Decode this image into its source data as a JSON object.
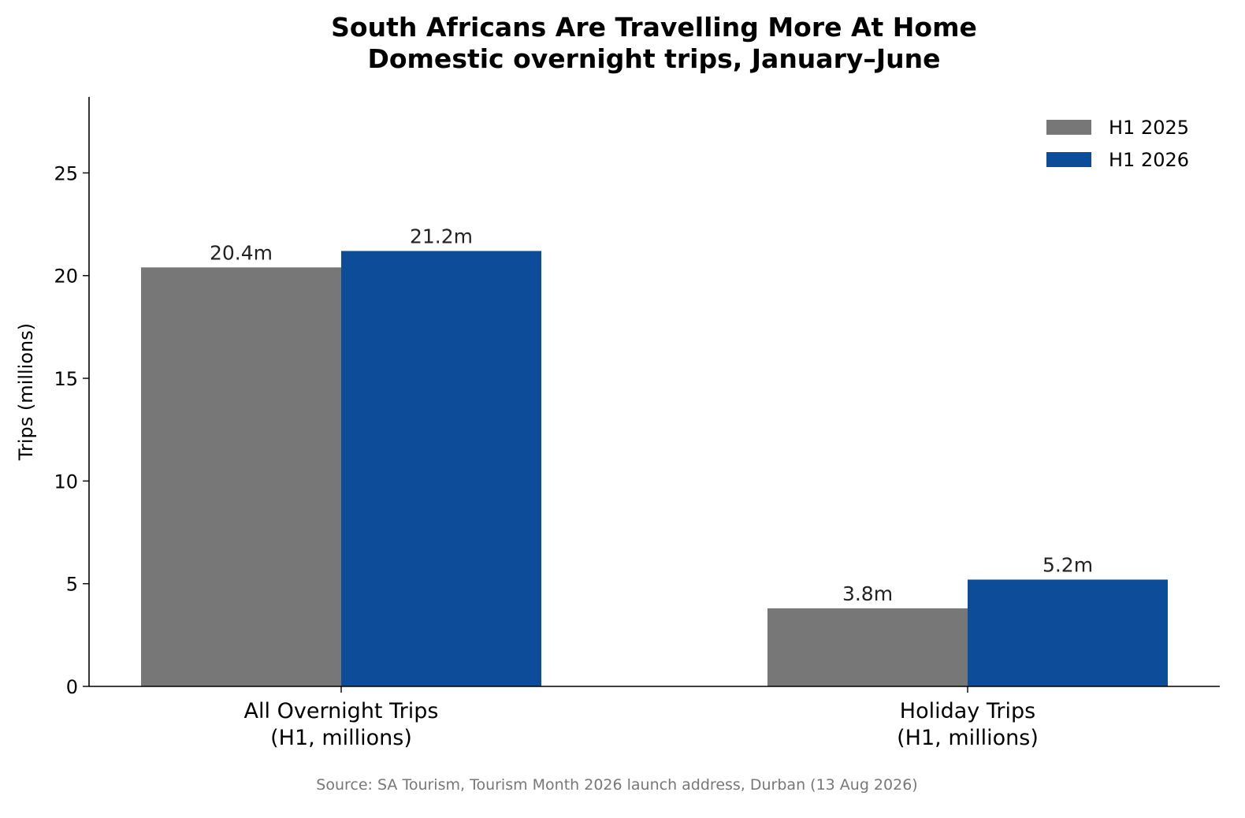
{
  "chart_data": {
    "type": "bar",
    "title": "South Africans Are Travelling More At Home",
    "subtitle": "Domestic overnight trips, January–June",
    "xlabel": "",
    "ylabel": "Trips (millions)",
    "ylim": [
      0,
      28.7
    ],
    "yticks": [
      0,
      5,
      10,
      15,
      20,
      25
    ],
    "categories": [
      [
        "All Overnight Trips",
        "(H1, millions)"
      ],
      [
        "Holiday Trips",
        "(H1, millions)"
      ]
    ],
    "series": [
      {
        "name": "H1 2025",
        "color": "#777777",
        "values": [
          20.4,
          3.8
        ],
        "labels": [
          "20.4m",
          "3.8m"
        ]
      },
      {
        "name": "H1 2026",
        "color": "#0d4c98",
        "values": [
          21.2,
          5.2
        ],
        "labels": [
          "21.2m",
          "5.2m"
        ]
      }
    ],
    "legend_position": "top-right",
    "grid": false,
    "source": "Source: SA Tourism, Tourism Month 2026 launch address, Durban (13 Aug 2026)"
  }
}
